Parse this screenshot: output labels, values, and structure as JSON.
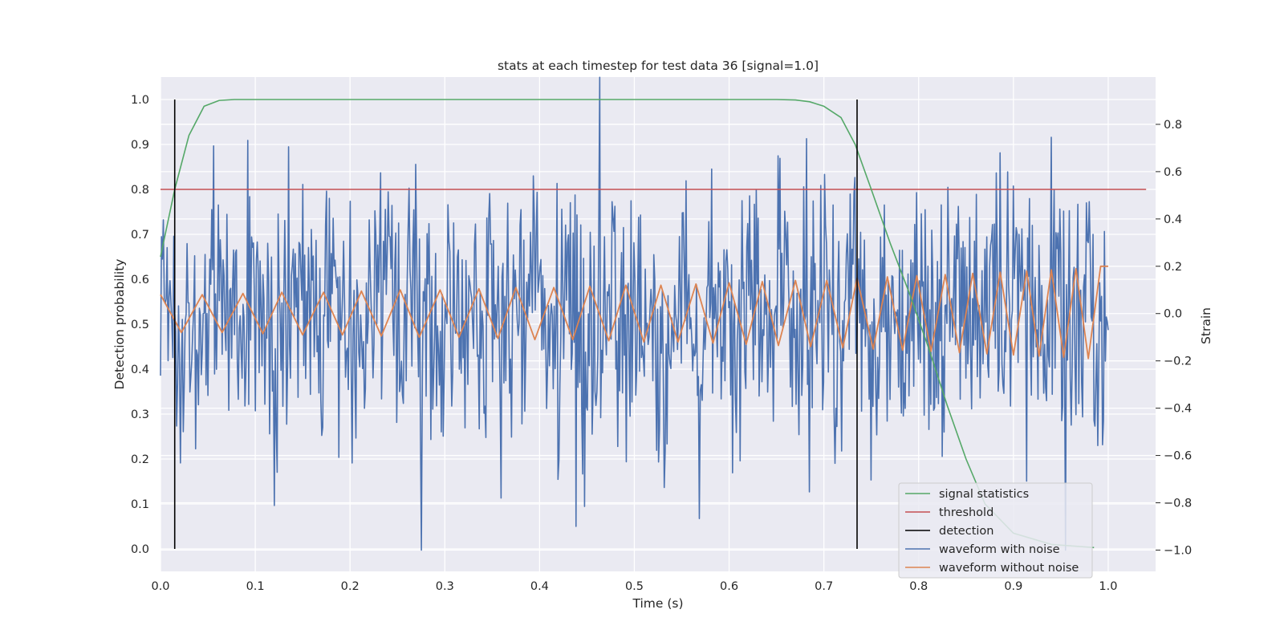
{
  "chart_data": {
    "type": "line",
    "title": "stats at each timestep for test data 36 [signal=1.0]",
    "xlabel": "Time (s)",
    "ylabel": "Detection probability",
    "y2label": "Strain",
    "xlim": [
      0.0,
      1.05
    ],
    "ylim": [
      -0.05,
      1.05
    ],
    "y2lim": [
      -1.09,
      1.0
    ],
    "xticks": [
      "0.0",
      "0.1",
      "0.2",
      "0.3",
      "0.4",
      "0.5",
      "0.6",
      "0.7",
      "0.8",
      "0.9",
      "1.0"
    ],
    "yticks": [
      "0.0",
      "0.1",
      "0.2",
      "0.3",
      "0.4",
      "0.5",
      "0.6",
      "0.7",
      "0.8",
      "0.9",
      "1.0"
    ],
    "y2ticks": [
      "−1.0",
      "−0.8",
      "−0.6",
      "−0.4",
      "−0.2",
      "0.0",
      "0.2",
      "0.4",
      "0.6",
      "0.8"
    ],
    "grid": true,
    "legend_position": "lower-right",
    "series": [
      {
        "name": "signal statistics",
        "color": "#55a868",
        "axis": "left",
        "x": [
          0.0,
          0.015,
          0.03,
          0.046,
          0.062,
          0.078,
          0.1,
          0.2,
          0.3,
          0.4,
          0.5,
          0.6,
          0.65,
          0.67,
          0.685,
          0.7,
          0.718,
          0.733,
          0.75,
          0.77,
          0.79,
          0.81,
          0.83,
          0.85,
          0.87,
          0.9,
          0.94,
          0.985
        ],
        "y": [
          0.65,
          0.8,
          0.92,
          0.985,
          0.998,
          1.0,
          1.0,
          1.0,
          1.0,
          1.0,
          1.0,
          1.0,
          1.0,
          0.999,
          0.995,
          0.985,
          0.96,
          0.9,
          0.8,
          0.68,
          0.57,
          0.45,
          0.32,
          0.2,
          0.1,
          0.035,
          0.01,
          0.003
        ]
      },
      {
        "name": "threshold",
        "color": "#c44e52",
        "axis": "left",
        "x": [
          0.0,
          1.04
        ],
        "y": [
          0.8,
          0.8
        ]
      },
      {
        "name": "detection",
        "color": "#000000",
        "axis": "left",
        "vlines": [
          0.015,
          0.735
        ],
        "y": [
          0.0,
          1.0
        ]
      },
      {
        "name": "waveform with noise",
        "color": "#4c72b0",
        "axis": "right",
        "x_range": [
          0.0,
          1.0
        ],
        "n_points": 1000,
        "y_range": [
          -1.0,
          1.0
        ],
        "style": "noisy oscillation"
      },
      {
        "name": "waveform without noise",
        "color": "#dd8452",
        "axis": "right",
        "x": [
          0.0,
          0.022,
          0.044,
          0.065,
          0.087,
          0.108,
          0.128,
          0.15,
          0.172,
          0.192,
          0.212,
          0.233,
          0.253,
          0.273,
          0.295,
          0.315,
          0.336,
          0.356,
          0.375,
          0.395,
          0.415,
          0.435,
          0.453,
          0.473,
          0.491,
          0.51,
          0.528,
          0.546,
          0.565,
          0.583,
          0.6,
          0.618,
          0.635,
          0.652,
          0.67,
          0.686,
          0.703,
          0.72,
          0.735,
          0.752,
          0.767,
          0.783,
          0.798,
          0.813,
          0.828,
          0.843,
          0.857,
          0.872,
          0.886,
          0.9,
          0.914,
          0.927,
          0.94,
          0.953,
          0.966,
          0.979,
          0.992,
          1.0
        ],
        "y": [
          0.08,
          -0.08,
          0.08,
          -0.08,
          0.085,
          -0.085,
          0.09,
          -0.09,
          0.09,
          -0.09,
          0.095,
          -0.095,
          0.1,
          -0.1,
          0.1,
          -0.1,
          0.105,
          -0.105,
          0.11,
          -0.11,
          0.11,
          -0.11,
          0.115,
          -0.115,
          0.12,
          -0.12,
          0.12,
          -0.12,
          0.125,
          -0.125,
          0.13,
          -0.13,
          0.135,
          -0.135,
          0.14,
          -0.14,
          0.14,
          -0.145,
          0.15,
          -0.15,
          0.155,
          -0.155,
          0.16,
          -0.16,
          0.165,
          -0.165,
          0.17,
          -0.17,
          0.175,
          -0.175,
          0.18,
          -0.18,
          0.185,
          -0.185,
          0.19,
          -0.19,
          0.2,
          0.2
        ]
      }
    ]
  }
}
